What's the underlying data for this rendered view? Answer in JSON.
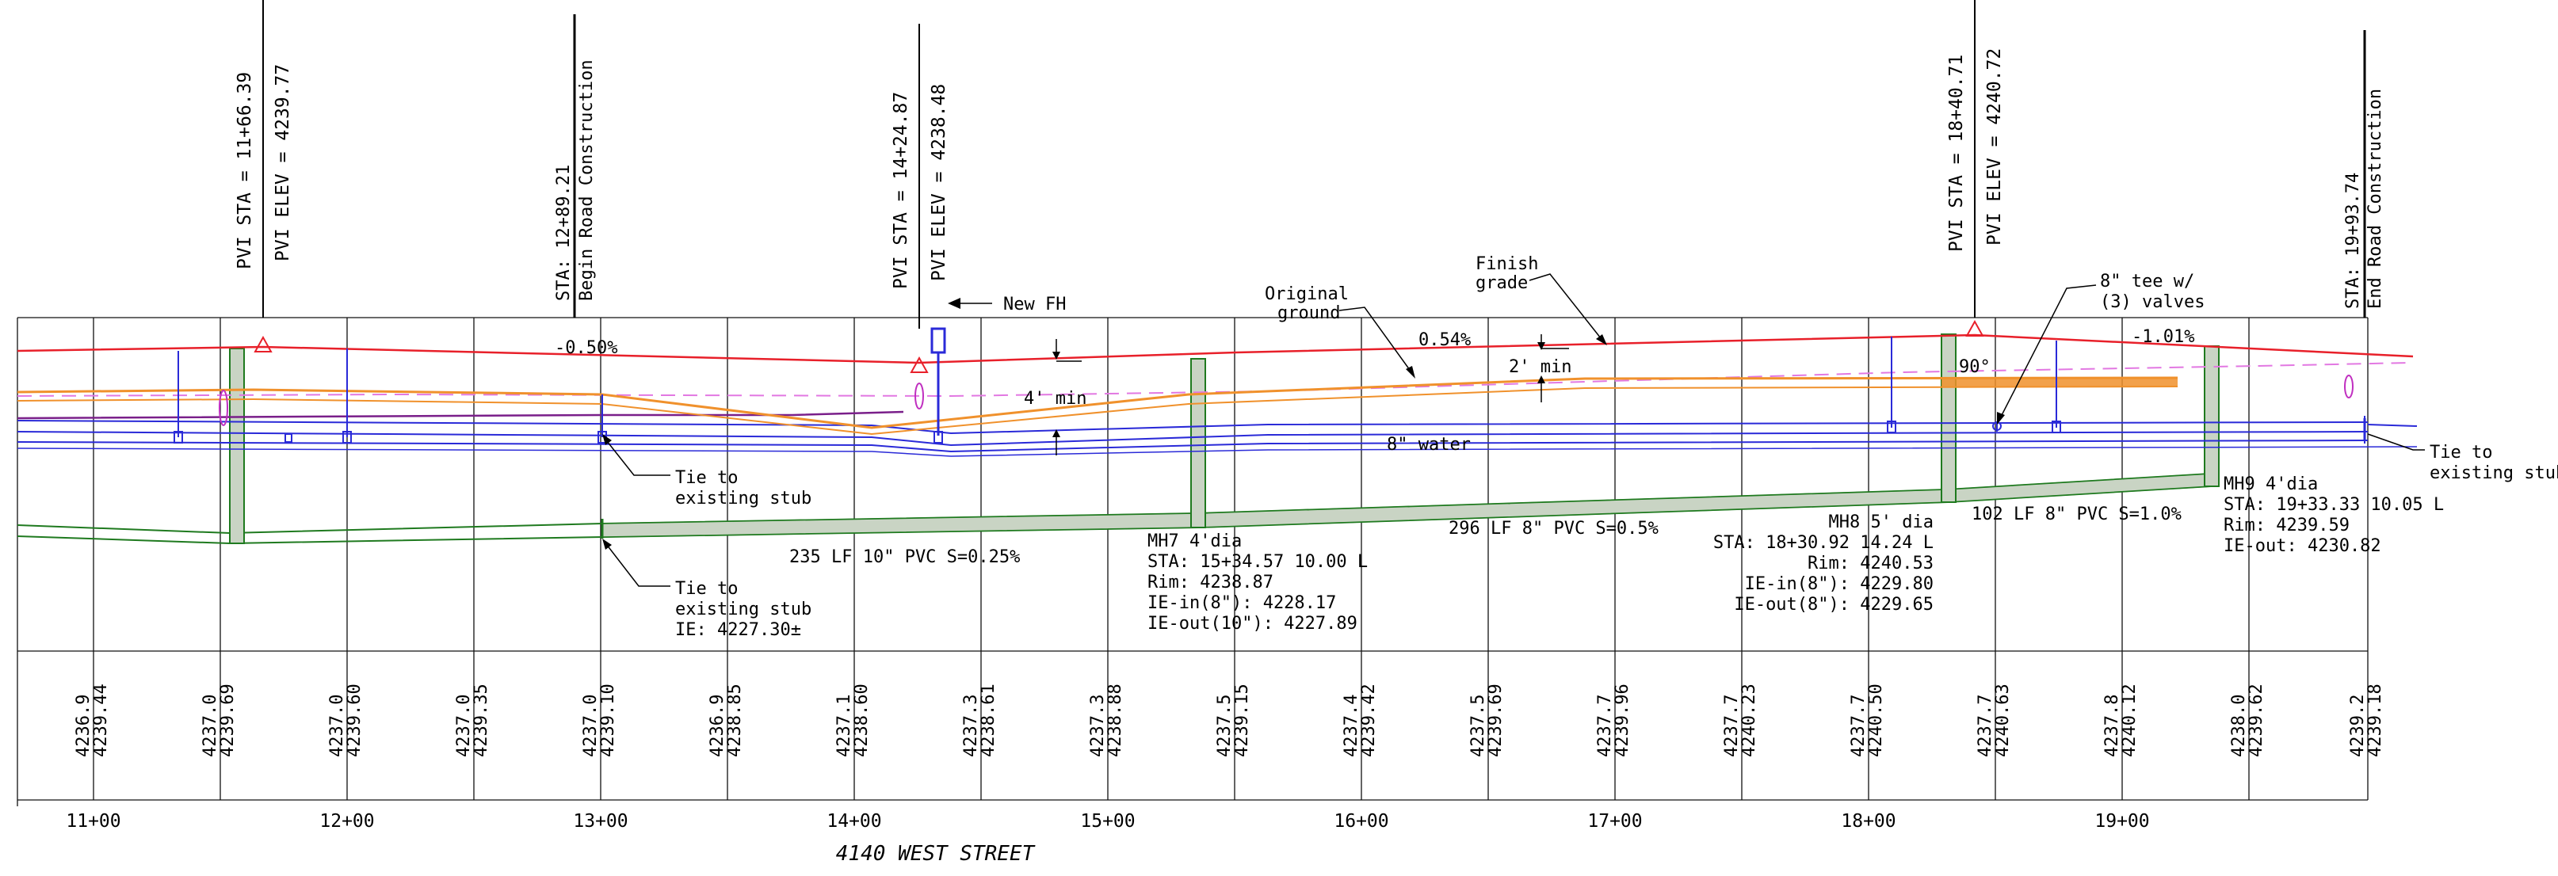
{
  "title": "4140 WEST STREET",
  "stations": [
    "11+00",
    "12+00",
    "13+00",
    "14+00",
    "15+00",
    "16+00",
    "17+00",
    "18+00",
    "19+00"
  ],
  "elevation_columns": [
    {
      "existing": "4236.9",
      "finish": "4239.44"
    },
    {
      "existing": "4237.0",
      "finish": "4239.69"
    },
    {
      "existing": "4237.0",
      "finish": "4239.60"
    },
    {
      "existing": "4237.0",
      "finish": "4239.35"
    },
    {
      "existing": "4237.0",
      "finish": "4239.10"
    },
    {
      "existing": "4236.9",
      "finish": "4238.85"
    },
    {
      "existing": "4237.1",
      "finish": "4238.60"
    },
    {
      "existing": "4237.3",
      "finish": "4238.61"
    },
    {
      "existing": "4237.3",
      "finish": "4238.88"
    },
    {
      "existing": "4237.5",
      "finish": "4239.15"
    },
    {
      "existing": "4237.4",
      "finish": "4239.42"
    },
    {
      "existing": "4237.5",
      "finish": "4239.69"
    },
    {
      "existing": "4237.7",
      "finish": "4239.96"
    },
    {
      "existing": "4237.7",
      "finish": "4240.23"
    },
    {
      "existing": "4237.7",
      "finish": "4240.50"
    },
    {
      "existing": "4237.7",
      "finish": "4240.63"
    },
    {
      "existing": "4237.8",
      "finish": "4240.12"
    },
    {
      "existing": "4238.0",
      "finish": "4239.62"
    },
    {
      "existing": "4239.2",
      "finish": "4239.18"
    }
  ],
  "vertical_labels": {
    "pvi1": {
      "sta": "PVI STA   =  11+66.39",
      "elev": "PVI ELEV  =  4239.77"
    },
    "begin": {
      "sta": "STA: 12+89.21",
      "text": "Begin Road Construction"
    },
    "pvi2": {
      "sta": "PVI STA   =  14+24.87",
      "elev": "PVI ELEV  =  4238.48"
    },
    "pvi3": {
      "sta": "PVI STA   =  18+40.71",
      "elev": "PVI ELEV  =  4240.72"
    },
    "end": {
      "sta": "STA: 19+93.74",
      "text": "End Road Construction"
    }
  },
  "grades": {
    "g1": "-0.50%",
    "g2": "0.54%",
    "g3": "-1.01%"
  },
  "callouts": {
    "new_fh": "New FH",
    "original_ground": [
      "Original",
      "ground"
    ],
    "finish_grade": [
      "Finish",
      "grade"
    ],
    "tee": [
      "8\" tee w/",
      "(3) valves"
    ],
    "four_min": "4' min",
    "two_min": "2' min",
    "ninety": "90°",
    "water": "8\" water",
    "tie1": [
      "Tie to",
      "existing stub"
    ],
    "tie2": [
      "Tie to",
      "existing stub",
      "IE: 4227.30±"
    ],
    "tie3": [
      "Tie to",
      "existing stub"
    ]
  },
  "pipes": {
    "p1": "235  LF  10\" PVC  S=0.25%",
    "p2": "296  LF  8\" PVC  S=0.5%",
    "p3": "102  LF  8\"  PVC  S=1.0%"
  },
  "manholes": {
    "mh7": [
      "MH7  4'dia",
      "STA:  15+34.57  10.00  L",
      "Rim:  4238.87",
      "IE-in(8\"):  4228.17",
      "IE-out(10\"):  4227.89"
    ],
    "mh8": [
      "MH8  5' dia",
      "STA:  18+30.92  14.24  L",
      "Rim:  4240.53",
      "IE-in(8\"):  4229.80",
      "IE-out(8\"):  4229.65"
    ],
    "mh9": [
      "MH9  4'dia",
      "STA:  19+33.33  10.05  L",
      "Rim:  4239.59",
      "IE-out:  4230.82"
    ]
  },
  "colors": {
    "finish_grade": "#e8202a",
    "original_ground": "#f0912c",
    "water": "#2a2ad8",
    "sewer": "#1f7a1f",
    "manhole_fill": "#c9d4c4",
    "gas": "#c02fc0",
    "dashed": "#e278e2"
  }
}
